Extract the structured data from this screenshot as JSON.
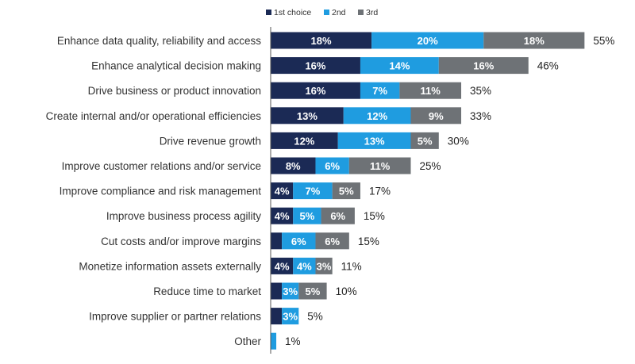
{
  "chart_data": {
    "type": "bar",
    "orientation": "horizontal",
    "stacked": true,
    "title": "",
    "xlabel": "",
    "ylabel": "",
    "xlim": [
      0,
      62
    ],
    "grid": false,
    "legend_position": "top-center",
    "categories": [
      "Enhance data quality, reliability and access",
      "Enhance analytical decision making",
      "Drive business or product innovation",
      "Create internal and/or operational efficiencies",
      "Drive revenue growth",
      "Improve customer relations and/or service",
      "Improve compliance and risk management",
      "Improve business process agility",
      "Cut costs and/or improve margins",
      "Monetize information assets externally",
      "Reduce time to market",
      "Improve supplier or partner relations",
      "Other"
    ],
    "series": [
      {
        "name": "1st choice",
        "color": "#1b2a55",
        "values": [
          18,
          16,
          16,
          13,
          12,
          8,
          4,
          4,
          2,
          4,
          2,
          2,
          0
        ],
        "labels": [
          "18%",
          "16%",
          "16%",
          "13%",
          "12%",
          "8%",
          "4%",
          "4%",
          "",
          "4%",
          "",
          "",
          ""
        ]
      },
      {
        "name": "2nd",
        "color": "#1f9ce0",
        "values": [
          20,
          14,
          7,
          12,
          13,
          6,
          7,
          5,
          6,
          4,
          3,
          3,
          1
        ],
        "labels": [
          "20%",
          "14%",
          "7%",
          "12%",
          "13%",
          "6%",
          "7%",
          "5%",
          "6%",
          "4%",
          "3%",
          "3%",
          ""
        ]
      },
      {
        "name": "3rd",
        "color": "#6e7276",
        "values": [
          18,
          16,
          11,
          9,
          5,
          11,
          5,
          6,
          6,
          3,
          5,
          0,
          0
        ],
        "labels": [
          "18%",
          "16%",
          "11%",
          "9%",
          "5%",
          "11%",
          "5%",
          "6%",
          "6%",
          "3%",
          "5%",
          "",
          ""
        ]
      }
    ],
    "totals": [
      "55%",
      "46%",
      "35%",
      "33%",
      "30%",
      "25%",
      "17%",
      "15%",
      "15%",
      "11%",
      "10%",
      "5%",
      "1%"
    ],
    "colors": {
      "category_text": "#333333",
      "total_text": "#222222",
      "bar_label_text": "#ffffff",
      "axis_line": "#555555"
    }
  }
}
